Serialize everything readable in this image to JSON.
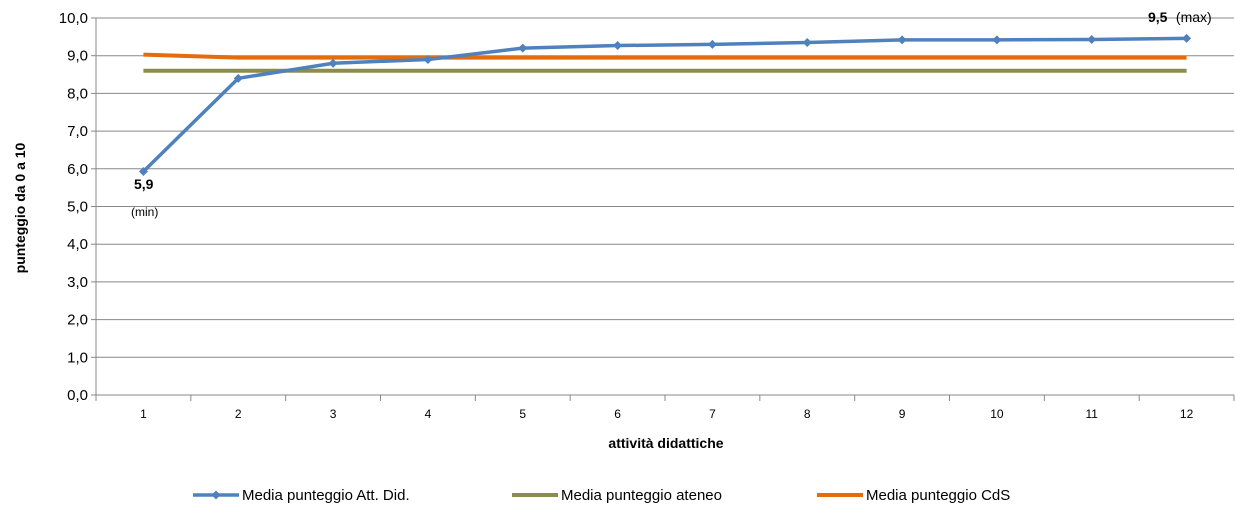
{
  "chart_data": {
    "type": "line",
    "xlabel": "attività didattiche",
    "ylabel": "punteggio da 0 a 10",
    "ylim": [
      0,
      10
    ],
    "y_ticks": [
      "0,0",
      "1,0",
      "2,0",
      "3,0",
      "4,0",
      "5,0",
      "6,0",
      "7,0",
      "8,0",
      "9,0",
      "10,0"
    ],
    "categories": [
      "1",
      "2",
      "3",
      "4",
      "5",
      "6",
      "7",
      "8",
      "9",
      "10",
      "11",
      "12"
    ],
    "grid": true,
    "legend_position": "bottom",
    "series": [
      {
        "name": "Media punteggio Att. Did.",
        "color": "#4F81BD",
        "marker": "diamond",
        "values": [
          5.93,
          8.4,
          8.8,
          8.9,
          9.2,
          9.27,
          9.3,
          9.35,
          9.42,
          9.42,
          9.43,
          9.46
        ]
      },
      {
        "name": "Media punteggio ateneo",
        "color": "#8C8C4E",
        "marker": "none",
        "values": [
          8.6,
          8.6,
          8.6,
          8.6,
          8.6,
          8.6,
          8.6,
          8.6,
          8.6,
          8.6,
          8.6,
          8.6
        ]
      },
      {
        "name": "Media punteggio CdS",
        "color": "#E46C0A",
        "marker": "none",
        "values": [
          9.03,
          8.95,
          8.95,
          8.95,
          8.95,
          8.95,
          8.95,
          8.95,
          8.95,
          8.95,
          8.95,
          8.95
        ]
      }
    ],
    "annotations": {
      "min_value": "5,9",
      "min_tag": "(min)",
      "max_value": "9,5",
      "max_tag": "(max)"
    }
  }
}
